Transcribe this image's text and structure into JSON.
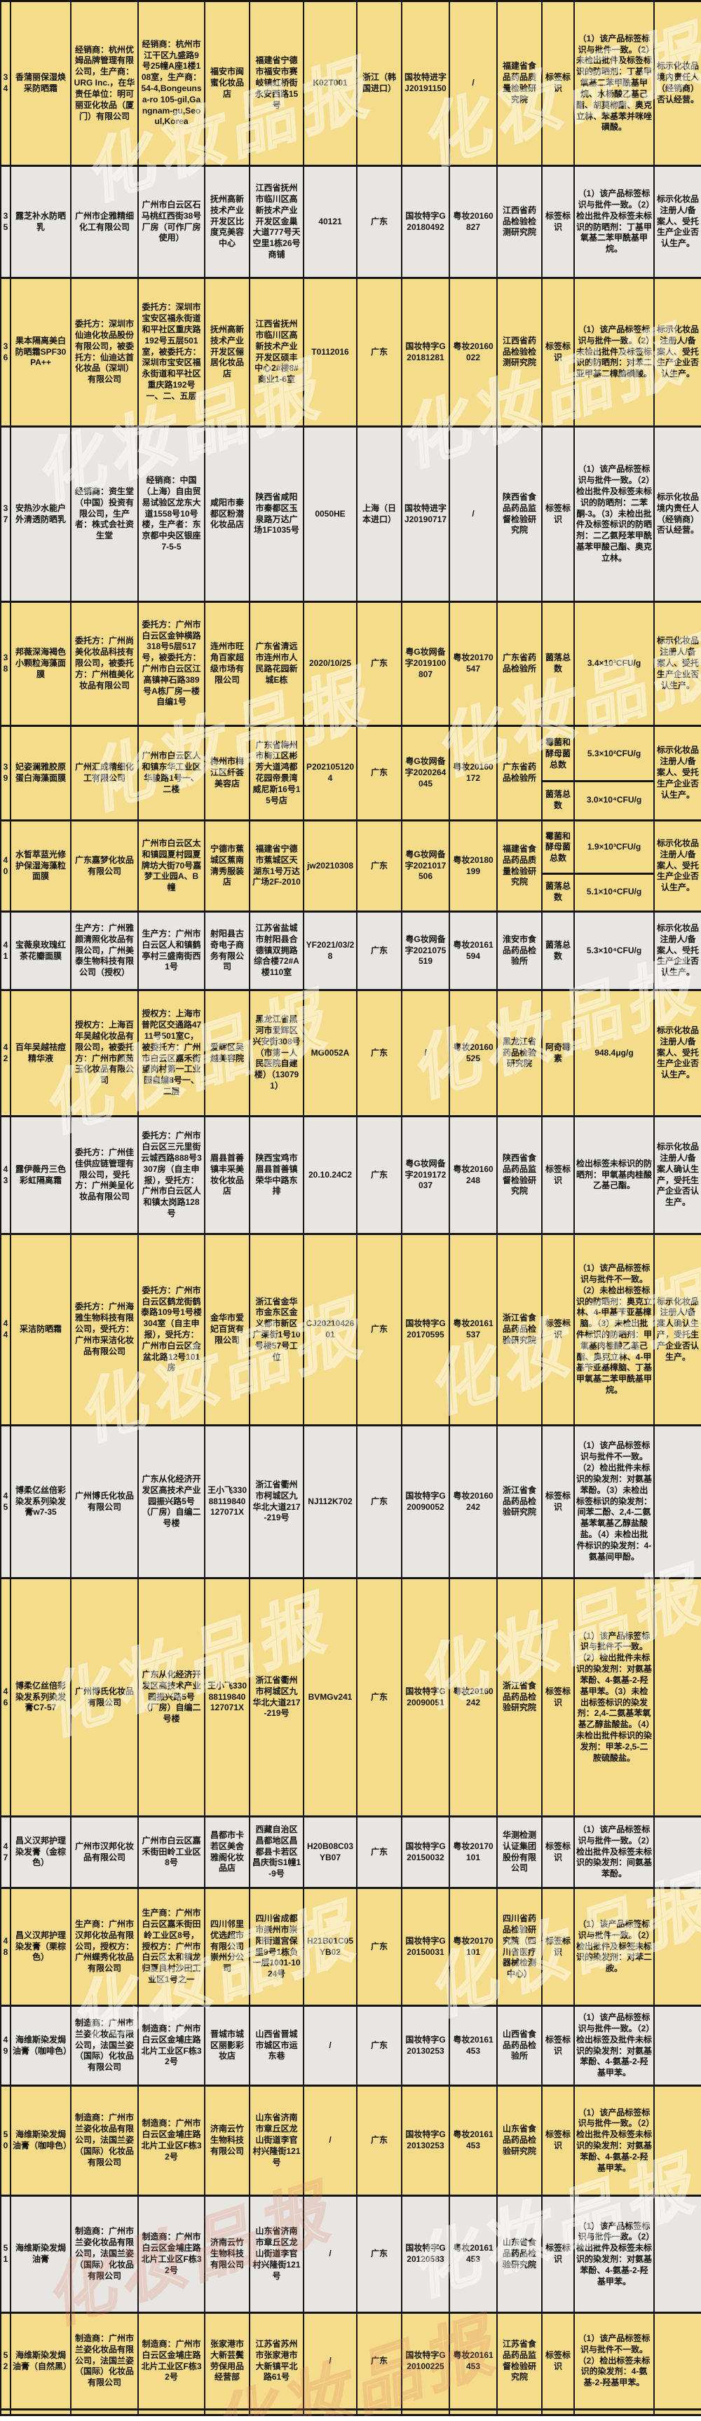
{
  "colors": {
    "row_yellow": "#F4DC8A",
    "row_grey": "#E7E6E3",
    "grid_border": "#141414"
  },
  "watermark": {
    "text": "化妆品报"
  },
  "table": {
    "rows": [
      {
        "no": "34",
        "bg": "yellow",
        "product": "香蒲丽保湿焕采防晒霜",
        "marked_party": "经销商：杭州优姆品牌管理有限公司，生产商：URG Inc.，在华责任单位：明可丽亚化妆品（厦门）有限公司",
        "marked_address": "经销商：杭州市江干区九盛路9号25幢A座1楼108室，生产商：54-4,Bongeunsa-ro 105-gil,Gangnam-gu,Seoul,Korea",
        "sampled_unit": "福安市闽蜜化妆品店",
        "sampled_address": "福建省宁德市福安市赛岐镇虹桥街永安西路15号",
        "batch": "K02T001",
        "region": "浙江（韩国进口）",
        "approval_no": "国妆特进字J20191150",
        "license_no": "/",
        "agency": "福建省食品药品质量检验研究院",
        "results": [
          {
            "item": "标签标识",
            "value": "（1）该产品标签标识与批件一致。（2）未检出批件及标签标识的防晒剂：丁基甲氧基二苯甲酰基甲烷、水杨酸乙基己酯、胡莫柳酯、奥克立林、苯基苯并咪唑磺酸。"
          }
        ],
        "remark": "标示化妆品境内责任人（经销商）否认经营。"
      },
      {
        "no": "35",
        "bg": "grey",
        "product": "露芝补水防晒乳",
        "marked_party": "广州市企雅精细化工有限公司",
        "marked_address": "广州市白云区石马桃红西街38号厂房（可作厂房使用）",
        "sampled_unit": "抚州高新技术产业开发区比度克美容中心",
        "sampled_address": "江西省抚州市临川区高新技术产业开发区金巢大道777号天空里1栋26号商铺",
        "batch": "40121",
        "region": "广东",
        "approval_no": "国妆特字G20180492",
        "license_no": "粤妆20160827",
        "agency": "江西省药品检验检测研究院",
        "results": [
          {
            "item": "标签标识",
            "value": "（1）该产品标签标识与批件一致。（2）检出批件及标签未标识的防晒剂：丁基甲氧基二苯甲酰基甲烷。"
          }
        ],
        "remark": "标示化妆品注册人/备案人、受托生产企业否认生产。"
      },
      {
        "no": "36",
        "bg": "yellow",
        "product": "果本隔离美白防晒霜SPF30PA++",
        "marked_party": "委托方：深圳市仙迪化妆品股份有限公司，被委托方：仙迪达首化妆品（深圳）有限公司",
        "marked_address": "委托方：深圳市宝安区福永街道和平社区重庆路192号五层501室，被委托方：深圳市宝安区福永街道和平社区重庆路192号一、二、五层",
        "sampled_unit": "抚州高新技术产业开发区俪居化妆品店",
        "sampled_address": "江西省抚州市临川区高新技术产业开发区硕丰中心2#楼8#商业1-6室",
        "batch": "T0112016",
        "region": "广东",
        "approval_no": "国妆特字G20181281",
        "license_no": "粤妆20160022",
        "agency": "江西省药品检验检测研究院",
        "results": [
          {
            "item": "标签标识",
            "value": "（1）该产品标签标识与批件一致。（2）未检出批件及标签标识的防晒剂：对苯二亚甲基二樟脑磺酸。"
          }
        ],
        "remark": "标示化妆品注册人/备案人、受托生产企业否认生产。"
      },
      {
        "no": "37",
        "bg": "grey",
        "product": "安热沙水能户外清透防晒乳",
        "marked_party": "经销商：资生堂（中国）投资有限公司，生产者：株式会社资生堂",
        "marked_address": "经销商：中国（上海）自由贸易试验区龙东大道1558号10号楼，生产者：东京都中央区银座7-5-5",
        "sampled_unit": "咸阳市秦都区粉潜化妆品店",
        "sampled_address": "陕西省咸阳市秦都区玉泉路万达广场1F1035号",
        "batch": "0050HE",
        "region": "上海（日本进口）",
        "approval_no": "国妆特进字J20190717",
        "license_no": "/",
        "agency": "陕西省食品药品监督检验研究院",
        "results": [
          {
            "item": "标签标识",
            "value": "（1）该产品标签标识与批件一致。（2）检出批件及标签未标识的防晒剂：二苯酮-3。（3）未检出批件及标签标识的防晒剂：二乙氨羟苯甲酰基苯甲酸己酯、奥克立林。"
          }
        ],
        "remark": "标示化妆品境内责任人（经销商）否认经营。"
      },
      {
        "no": "38",
        "bg": "yellow",
        "product": "邦薇深海褐色小颗粒海藻面膜",
        "marked_party": "委托方：广州尚美化妆品科技有限公司，被委托方：广州植美化妆品有限公司",
        "marked_address": "委托方：广州市白云区金钟横路318号5层517号，被委托方：广州市白云区江高镇神石路389号A栋厂房一楼自编1号",
        "sampled_unit": "连州市旺角百家超级市场有限公司",
        "sampled_address": "广东省清远市连州市人民路花园新城E栋",
        "batch": "2020/10/25",
        "region": "广东",
        "approval_no": "粤G妆网备字2019100807",
        "license_no": "粤妆20170547",
        "agency": "广东省药品检验所",
        "results": [
          {
            "item": "菌落总数",
            "value": "3.4×10³CFU/g"
          }
        ],
        "remark": "标示化妆品注册人/备案人、受托生产企业否认生产。"
      },
      {
        "no": "39",
        "bg": "yellow",
        "product": "妃姿澜雅胶原蛋白海藻面膜",
        "marked_party": "广州汇成精细化工有限公司",
        "marked_address": "广州市白云区人和镇东华工业区华骏路1号一、二楼",
        "sampled_unit": "梅州市梅江区纤荟美容店",
        "sampled_address": "广东省梅州市梅江区彬芳大道鸿都花园帝景湾威尼斯16号15号店",
        "batch": "P2021051204",
        "region": "广东",
        "approval_no": "粤G妆网备字2020264045",
        "license_no": "粤妆20160172",
        "agency": "广东省药品检验所",
        "results": [
          {
            "item": "霉菌和酵母菌总数",
            "value": "5.3×10²CFU/g"
          },
          {
            "item": "菌落总数",
            "value": "3.0×10⁴CFU/g"
          }
        ],
        "remark": "标示化妆品注册人/备案人、受托生产企业否认生产。"
      },
      {
        "no": "40",
        "bg": "yellow",
        "product": "水皙萃蓝光修护保湿海藻粒面膜",
        "marked_party": "广东嘉梦化妆品有限公司",
        "marked_address": "广州市白云区太和镇园夏村园夏牌坊大街70号嘉梦工业园A、B幢",
        "sampled_unit": "宁德市蕉城区蕉南清秀服装店",
        "sampled_address": "福建省宁德市蕉城区天湖东1号万达广场2F-2010",
        "batch": "jw20210308",
        "region": "广东",
        "approval_no": "粤G妆网备字2021017506",
        "license_no": "粤妆20180199",
        "agency": "福建省食品药品质量检验研究院",
        "results": [
          {
            "item": "霉菌和酵母菌总数",
            "value": "1.9×10³CFU/g"
          },
          {
            "item": "菌落总数",
            "value": "5.1×10⁴CFU/g"
          }
        ],
        "remark": "标示化妆品注册人/备案人、受托生产企业否认生产。"
      },
      {
        "no": "41",
        "bg": "grey",
        "product": "宝薇泉玫瑰红茶花瓣面膜",
        "marked_party": "生产方：广州雅颜清照化妆品有限公司，广州美泰生物科技有限公司（授权）",
        "marked_address": "生产方：广州市白云区人和镇鹤亭村三盛南街西1号",
        "sampled_unit": "射阳县古奇电子商务有限公司",
        "sampled_address": "江苏省盐城市射阳县合德镇双拥路综合楼72#A楼110室",
        "batch": "YF2021/03/28",
        "region": "广东",
        "approval_no": "粤G妆网备字2021075519",
        "license_no": "粤妆20161594",
        "agency": "淮安市食品药品检验所",
        "results": [
          {
            "item": "菌落总数",
            "value": "5.3×10⁴CFU/g"
          }
        ],
        "remark": "标示化妆品注册人/备案人、受托生产企业否认生产。"
      },
      {
        "no": "42",
        "bg": "yellow",
        "product": "百年吴越祛痘精华液",
        "marked_party": "授权方：上海百年吴越化妆品有限公司，被委托方：广州市颜茹玉化妆品有限公司",
        "marked_address": "授权方：上海市普陀区交通路4711号501室C，被委托方：广州市白云区嘉禾街望岗村第一工业园自编8号一、二层",
        "sampled_unit": "爱辉区吴越美容院",
        "sampled_address": "黑龙江省黑河市爱辉区兴安街308号（市第一人民医院自建楼）（130791）",
        "batch": "MG0052A",
        "region": "广东",
        "approval_no": "/",
        "license_no": "粤妆20160525",
        "agency": "黑龙江省药品检验研究院",
        "results": [
          {
            "item": "阿奇霉素",
            "value": "948.4μg/g"
          }
        ],
        "remark": "标示化妆品注册人/备案人、受托生产企业否认生产。"
      },
      {
        "no": "43",
        "bg": "grey",
        "product": "露伊薇丹三色彩虹隔离霜",
        "marked_party": "委托方：广州佳佳供应链管理有限公司，受托方：广州美呈化妆品有限公司",
        "marked_address": "委托方：广州市白云区三元里街云城西路888号3307房（自主申报），受托方：广州市白云区人和镇太岗路128号",
        "sampled_unit": "眉县首善镇丰采美妆化妆品店",
        "sampled_address": "陕西宝鸡市眉县首善镇荣华中路东排",
        "batch": "20.10.24C2",
        "region": "广东",
        "approval_no": "粤G妆网备字2019172037",
        "license_no": "粤妆20160248",
        "agency": "陕西省食品药品监督检验研究院",
        "results": [
          {
            "item": "标签标识",
            "value": "检出标签未标识的防晒剂：甲氧基肉桂酸乙基己酯。"
          }
        ],
        "remark": "标示化妆品注册人/备案人确认生产，受托生产企业否认生产。"
      },
      {
        "no": "44",
        "bg": "yellow",
        "product": "采洁防晒霜",
        "marked_party": "委托方：广州海雅生物科技有限公司，受托方：广州市采洁化妆品有限公司",
        "marked_address": "委托方：广州市白云区鹤龙街鹤泰路109号1号楼304室（自主申报），受托方：广州市白云区金盆北路12号101房",
        "sampled_unit": "金华市爱妃百货有限公司",
        "sampled_address": "浙江省金华市金东区金义都市新区广渠街1号10号楼57号工位",
        "batch": "CJ2021042601",
        "region": "广东",
        "approval_no": "国妆特字G20170595",
        "license_no": "粤妆20161537",
        "agency": "浙江省食品药品检验研究院",
        "results": [
          {
            "item": "标签标识",
            "value": "（1）该产品标签标识与批件不一致。（2）未检出标签标识的防晒剂：奥克立林、4-甲基苄亚基樟脑。（3）未检出批件标识的防晒剂：甲氧基肉桂酸乙基己酯、奥克立林、4-甲基苄亚基樟脑、丁基甲氧基二苯甲酰基甲烷。"
          }
        ],
        "remark": "标示化妆品注册人/备案人确认生产，受托生产企业否认生产。"
      },
      {
        "no": "45",
        "bg": "grey",
        "product": "博柔亿丝倍彩染发系列染发膏w7-35",
        "marked_party": "广州博氏化妆品有限公司",
        "marked_address": "广东从化经济开发区高技术产业园振兴路5号（厂房）自编二号楼",
        "sampled_unit": "王小飞33088119840127071X",
        "sampled_address": "浙江省衢州市柯城区九华北大道217-219号",
        "batch": "NJ112K702",
        "region": "广东",
        "approval_no": "国妆特字G20090052",
        "license_no": "粤妆20160242",
        "agency": "浙江省食品药品检验研究院",
        "results": [
          {
            "item": "标签标识",
            "value": "（1）该产品标签标识与批件不一致。（2）检出批件未标识的染发剂：对氨基苯酚。（3）未检出标签标识的染发剂：间苯二酚、2,4-二氨基苯氧基乙醇盐酸盐。（4）未检出批件标识的染发剂：4-氨基间甲酚。"
          }
        ],
        "remark": ""
      },
      {
        "no": "46",
        "bg": "yellow",
        "product": "博柔亿丝倍彩染发系列染发膏C7-57",
        "marked_party": "广州博氏化妆品有限公司",
        "marked_address": "广东从化经济开发区高技术产业园振兴路5号（厂房）自编二号楼",
        "sampled_unit": "王小飞33088119840127071X",
        "sampled_address": "浙江省衢州市柯城区九华北大道217-219号",
        "batch": "BVMGv241",
        "region": "广东",
        "approval_no": "国妆特字G20090051",
        "license_no": "粤妆20160242",
        "agency": "浙江省食品药品检验研究院",
        "results": [
          {
            "item": "标签标识",
            "value": "（1）该产品标签标识与批件不一致。（2）检出批件未标识的染发剂：对氨基苯酚、4-氨基-2-羟基甲苯。（3）未检出标签标识的染发剂：2,4-二氨基苯氧基乙醇盐酸盐。（4）未检出批件标识的染发剂：甲苯-2,5-二胺硫酸盐。"
          }
        ],
        "remark": ""
      },
      {
        "no": "47",
        "bg": "grey",
        "product": "昌义汉邦护理染发膏（金棕色）",
        "marked_party": "广州市汉邦化妆品有限公司",
        "marked_address": "广州市白云区嘉禾街田岭工业区8号",
        "sampled_unit": "昌都市卡若区美舍雅阁化妆品店",
        "sampled_address": "西藏自治区昌都地区昌都县卡若区昌庆街S1幢1-9号",
        "batch": "H20B08C03YB07",
        "region": "广东",
        "approval_no": "国妆特字G20150032",
        "license_no": "粤妆20170101",
        "agency": "华测检测认证集团股份有限公司",
        "results": [
          {
            "item": "标签标识",
            "value": "（1）该产品标签标识与批件一致。（2）检出批件及标签未标识的染发剂：间氨基苯酚。"
          }
        ],
        "remark": ""
      },
      {
        "no": "48",
        "bg": "yellow",
        "product": "昌义汉邦护理染发膏（栗棕色）",
        "marked_party": "生产商：广州市汉邦化妆品有限公司，授权方：广州蝶秀化妆品有限公司",
        "marked_address": "生产商：广州市白云区嘉禾街田岭工业区8号，授权方：广州市白云区太和镇龙归夏良村沙田工业区1号之一",
        "sampled_unit": "四川邻里优选超市有限公司崇州分公司",
        "sampled_address": "四川省成都市崇州市崇阳街道宫保里9号1栋负一层1001-1024号",
        "batch": "H21B01C05YB02",
        "region": "广东",
        "approval_no": "国妆特字G20150031",
        "license_no": "粤妆20170101",
        "agency": "四川省药品检验研究院（四川省医疗器械检测中心）",
        "results": [
          {
            "item": "标签标识",
            "value": "（1）该产品标签标识与批件一致。（2）检出批件及标签未标识的染发剂：对苯二胺。"
          }
        ],
        "remark": ""
      },
      {
        "no": "49",
        "bg": "grey",
        "product": "海维斯染发焗油膏（咖啡色）",
        "marked_party": "制造商：广州市兰姿化妆品有限公司，法国兰姿（国际）化妆品有限公司",
        "marked_address": "制造商：广州市白云区金埔庄路北片工业区F栋32号",
        "sampled_unit": "晋城市城区丽影彩妆店",
        "sampled_address": "山西省晋城市城区市运东巷",
        "batch": "/",
        "region": "广东",
        "approval_no": "国妆特字G20130253",
        "license_no": "粤妆20161453",
        "agency": "山西省食品药品检验所",
        "results": [
          {
            "item": "标签标识",
            "value": "（1）该产品标签标识与批件一致。（2）检出标签及批件未标识的染发剂：对氨基苯酚、4-氨基-2-羟基甲苯。"
          }
        ],
        "remark": ""
      },
      {
        "no": "50",
        "bg": "yellow",
        "product": "海维斯染发焗油膏（咖啡色）",
        "marked_party": "制造商：广州市兰姿化妆品有限公司，法国兰姿（国际）化妆品有限公司",
        "marked_address": "制造商：广州市白云区金埔庄路北片工业区F栋32号",
        "sampled_unit": "济南云竹生物科技有限公司",
        "sampled_address": "山东省济南市章丘区龙山街道李官村兴隆街121号",
        "batch": "/",
        "region": "广东",
        "approval_no": "国妆特字G20130253",
        "license_no": "粤妆20161453",
        "agency": "山东省食品药品检验研究院",
        "results": [
          {
            "item": "标签标识",
            "value": "（1）该产品标签标识与批件一致。（2）检出批件及标签未标识的染发剂：对氨基苯酚、4-氨基-2-羟基甲苯。"
          }
        ],
        "remark": ""
      },
      {
        "no": "51",
        "bg": "grey",
        "product": "海维斯染发焗油膏",
        "marked_party": "制造商：广州市兰姿化妆品有限公司，法国兰姿（国际）化妆品有限公司",
        "marked_address": "制造商：广州市白云区金埔庄路北片工业区F栋32号",
        "sampled_unit": "济南云竹生物科技有限公司",
        "sampled_address": "山东省济南市章丘区龙山街道李官村兴隆街121号",
        "batch": "/",
        "region": "广东",
        "approval_no": "国妆特字G20120583",
        "license_no": "粤妆20161453",
        "agency": "山东省食品药品检验研究院",
        "results": [
          {
            "item": "标签标识",
            "value": "（1）该产品标签标识与批件一致。（2）检出批件及标签未标识的染发剂：对氨基苯酚、4-氨基-2-羟基甲苯。"
          }
        ],
        "remark": ""
      },
      {
        "no": "52",
        "bg": "yellow",
        "product": "海维斯染发焗油膏（自然黑）",
        "marked_party": "制造商：广州市兰姿化妆品有限公司，法国兰姿（国际）化妆品有限公司",
        "marked_address": "制造商：广州市白云区金埔庄路北片工业区F栋32号",
        "sampled_unit": "张家港市大新芸鬓劳保用品经营部",
        "sampled_address": "江苏省苏州市张家港市大新镇平北路61号",
        "batch": "/",
        "region": "广东",
        "approval_no": "国妆特字G20100225",
        "license_no": "粤妆20161453",
        "agency": "江苏省食品药品监督检验研究院",
        "results": [
          {
            "item": "标签标识",
            "value": "（1）该产品标签标识与批件不一致。（2）检出标签未标识的染发剂：4-氨基-2-羟基甲苯。"
          }
        ],
        "remark": ""
      }
    ]
  }
}
